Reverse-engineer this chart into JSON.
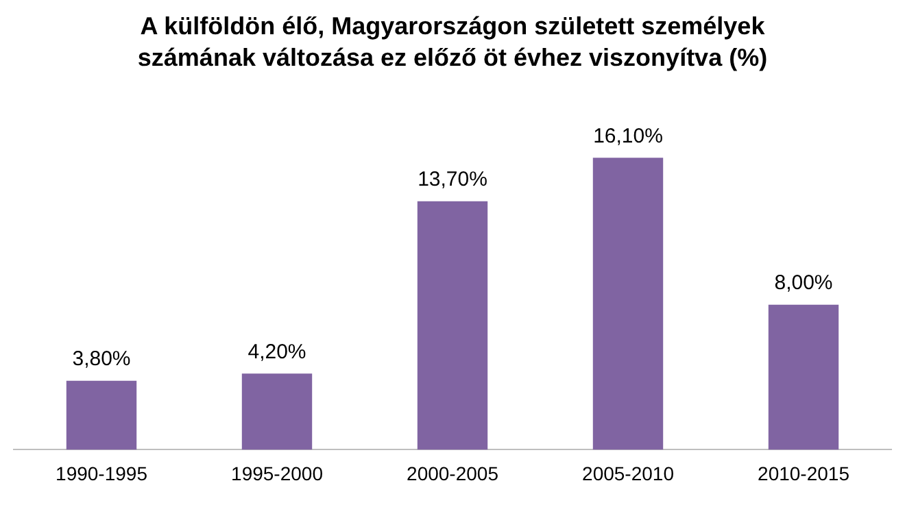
{
  "chart_data": {
    "type": "bar",
    "title": "A külföldön élő, Magyarországon született személyek számának változása ez előző öt évhez viszonyítva (%)",
    "categories": [
      "1990-1995",
      "1995-2000",
      "2000-2005",
      "2005-2010",
      "2010-2015"
    ],
    "values": [
      3.8,
      4.2,
      13.7,
      16.1,
      8.0
    ],
    "value_labels": [
      "3,80%",
      "4,20%",
      "13,70%",
      "16,10%",
      "8,00%"
    ],
    "color": "#8064a2",
    "grid": false,
    "legend": false,
    "tick_labels": "x"
  }
}
